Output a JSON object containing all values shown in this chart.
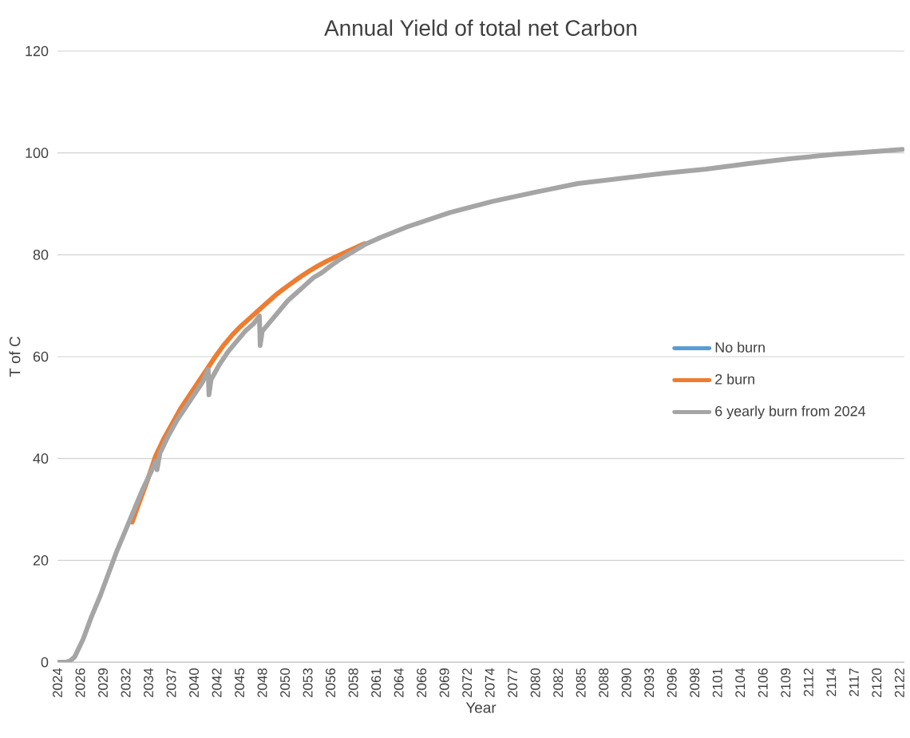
{
  "chart_data": {
    "type": "line",
    "title": "Annual Yield of total net Carbon",
    "xlabel": "Year",
    "ylabel": "T of C",
    "xlim": [
      "2024-01",
      "2123-04"
    ],
    "ylim": [
      0,
      120
    ],
    "yticks": [
      0,
      20,
      40,
      60,
      80,
      100,
      120
    ],
    "xticks": [
      {
        "value": "2024-01",
        "label": "2024"
      },
      {
        "value": "2026-09",
        "label": "2026"
      },
      {
        "value": "2029-05",
        "label": "2029"
      },
      {
        "value": "2032-01",
        "label": "2032"
      },
      {
        "value": "2034-09",
        "label": "2034"
      },
      {
        "value": "2037-05",
        "label": "2037"
      },
      {
        "value": "2040-01",
        "label": "2040"
      },
      {
        "value": "2042-09",
        "label": "2042"
      },
      {
        "value": "2045-05",
        "label": "2045"
      },
      {
        "value": "2048-01",
        "label": "2048"
      },
      {
        "value": "2050-09",
        "label": "2050"
      },
      {
        "value": "2053-05",
        "label": "2053"
      },
      {
        "value": "2056-01",
        "label": "2056"
      },
      {
        "value": "2058-09",
        "label": "2058"
      },
      {
        "value": "2061-05",
        "label": "2061"
      },
      {
        "value": "2064-01",
        "label": "2064"
      },
      {
        "value": "2066-09",
        "label": "2066"
      },
      {
        "value": "2069-05",
        "label": "2069"
      },
      {
        "value": "2072-01",
        "label": "2072"
      },
      {
        "value": "2074-09",
        "label": "2074"
      },
      {
        "value": "2077-05",
        "label": "2077"
      },
      {
        "value": "2080-01",
        "label": "2080"
      },
      {
        "value": "2082-09",
        "label": "2082"
      },
      {
        "value": "2085-05",
        "label": "2085"
      },
      {
        "value": "2088-01",
        "label": "2088"
      },
      {
        "value": "2090-09",
        "label": "2090"
      },
      {
        "value": "2093-05",
        "label": "2093"
      },
      {
        "value": "2096-01",
        "label": "2096"
      },
      {
        "value": "2098-09",
        "label": "2098"
      },
      {
        "value": "2101-05",
        "label": "2101"
      },
      {
        "value": "2104-01",
        "label": "2104"
      },
      {
        "value": "2106-09",
        "label": "2106"
      },
      {
        "value": "2109-05",
        "label": "2109"
      },
      {
        "value": "2112-01",
        "label": "2112"
      },
      {
        "value": "2114-09",
        "label": "2114"
      },
      {
        "value": "2117-05",
        "label": "2117"
      },
      {
        "value": "2120-01",
        "label": "2120"
      },
      {
        "value": "2122-09",
        "label": "2122"
      }
    ],
    "grid": "y",
    "legend": "right",
    "marker": "none",
    "line_style": "solid",
    "series": [
      {
        "name": "No burn",
        "color": "#5b9bd5"
      },
      {
        "name": "2 burn",
        "color": "#ed7d31",
        "x": [
          "2032-10",
          "2033-07",
          "2034-07",
          "2035-07",
          "2036-07",
          "2037-07",
          "2038-07",
          "2039-07",
          "2040-07",
          "2041-07",
          "2042-07",
          "2043-07",
          "2044-07",
          "2045-07",
          "2046-07",
          "2047-07",
          "2048-07",
          "2049-07",
          "2050-07",
          "2051-07",
          "2052-07",
          "2053-07",
          "2054-07",
          "2055-07",
          "2056-07",
          "2058-01",
          "2060-01"
        ],
        "values": [
          27.5,
          31,
          35.5,
          40.5,
          44,
          47,
          50,
          52.5,
          55,
          57.5,
          60,
          62.3,
          64.3,
          66,
          67.5,
          69,
          70.5,
          72,
          73.3,
          74.5,
          75.7,
          76.8,
          77.8,
          78.7,
          79.5,
          80.7,
          82.2
        ]
      },
      {
        "name": "6 yearly burn from 2024",
        "color": "#a5a5a5",
        "x": [
          "2024-01",
          "2025-01",
          "2025-07",
          "2026-01",
          "2027-01",
          "2028-01",
          "2029-01",
          "2030-01",
          "2031-01",
          "2032-01",
          "2033-01",
          "2034-01",
          "2035-01",
          "2035-07",
          "2035-09",
          "2036-01",
          "2037-01",
          "2038-01",
          "2039-01",
          "2040-01",
          "2041-01",
          "2041-09",
          "2041-10",
          "2042-01",
          "2043-01",
          "2044-01",
          "2045-01",
          "2046-01",
          "2047-01",
          "2047-09",
          "2047-10",
          "2048-01",
          "2049-01",
          "2050-01",
          "2051-01",
          "2052-01",
          "2053-01",
          "2054-01",
          "2055-01",
          "2056-01",
          "2057-01",
          "2058-01",
          "2060-01",
          "2062-01",
          "2065-01",
          "2070-01",
          "2075-01",
          "2080-01",
          "2085-01",
          "2090-01",
          "2095-01",
          "2100-01",
          "2105-01",
          "2110-01",
          "2115-01",
          "2120-01",
          "2123-01"
        ],
        "values": [
          0,
          0,
          0.3,
          1,
          4.5,
          9,
          13,
          17.5,
          22,
          26,
          30,
          34,
          37.5,
          39.5,
          37.8,
          41,
          44.5,
          47.5,
          50,
          52.5,
          55,
          57.5,
          52.5,
          55.5,
          58.5,
          61,
          63,
          65,
          66.5,
          68,
          62.2,
          65,
          67,
          69,
          71,
          72.5,
          74,
          75.5,
          76.5,
          77.8,
          79,
          80,
          82,
          83.5,
          85.5,
          88.3,
          90.5,
          92.3,
          94,
          95,
          96,
          96.8,
          97.9,
          98.9,
          99.7,
          100.3,
          100.7
        ]
      }
    ]
  }
}
